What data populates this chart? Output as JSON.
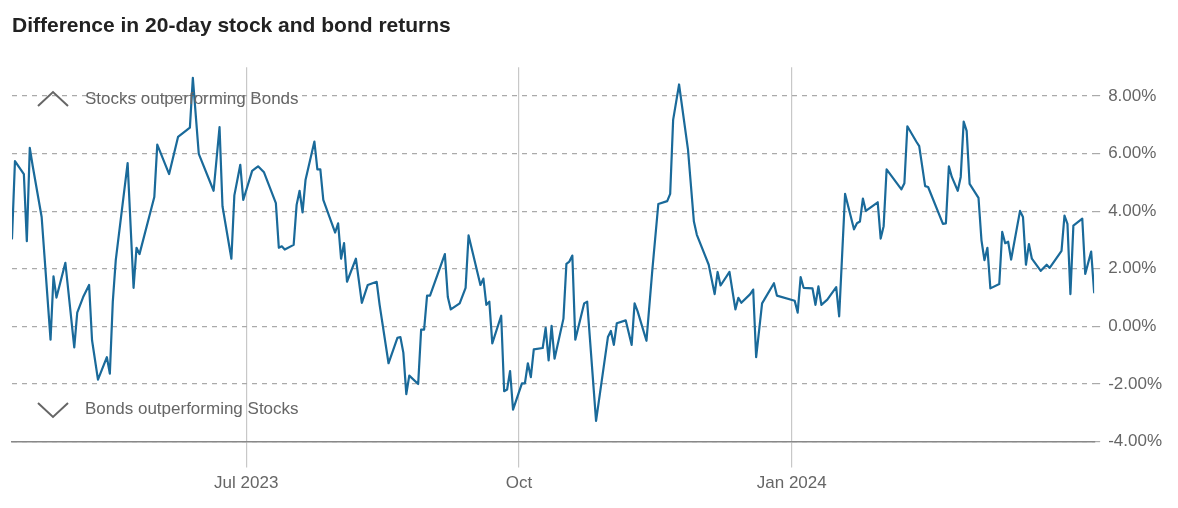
{
  "chart_data": {
    "type": "line",
    "title": "Difference in 20-day stock and bond returns",
    "annotations": [
      "Stocks outperforming Bonds",
      "Bonds outperforming Stocks"
    ],
    "x": [
      "2023-04-13",
      "2023-04-14",
      "2023-04-17",
      "2023-04-18",
      "2023-04-19",
      "2023-04-20",
      "2023-04-23",
      "2023-04-26",
      "2023-04-27",
      "2023-04-28",
      "2023-05-01",
      "2023-05-04",
      "2023-05-05",
      "2023-05-07",
      "2023-05-09",
      "2023-05-10",
      "2023-05-12",
      "2023-05-15",
      "2023-05-16",
      "2023-05-17",
      "2023-05-18",
      "2023-05-22",
      "2023-05-24",
      "2023-05-25",
      "2023-05-26",
      "2023-05-31",
      "2023-06-01",
      "2023-06-05",
      "2023-06-08",
      "2023-06-12",
      "2023-06-13",
      "2023-06-15",
      "2023-06-20",
      "2023-06-22",
      "2023-06-23",
      "2023-06-26",
      "2023-06-27",
      "2023-06-29",
      "2023-06-30",
      "2023-07-03",
      "2023-07-05",
      "2023-07-07",
      "2023-07-11",
      "2023-07-12",
      "2023-07-13",
      "2023-07-14",
      "2023-07-17",
      "2023-07-18",
      "2023-07-19",
      "2023-07-20",
      "2023-07-21",
      "2023-07-24",
      "2023-07-25",
      "2023-07-26",
      "2023-07-27",
      "2023-07-31",
      "2023-08-01",
      "2023-08-02",
      "2023-08-03",
      "2023-08-04",
      "2023-08-07",
      "2023-08-09",
      "2023-08-11",
      "2023-08-14",
      "2023-08-15",
      "2023-08-18",
      "2023-08-21",
      "2023-08-22",
      "2023-08-23",
      "2023-08-24",
      "2023-08-25",
      "2023-08-28",
      "2023-08-29",
      "2023-08-30",
      "2023-08-31",
      "2023-09-01",
      "2023-09-06",
      "2023-09-07",
      "2023-09-08",
      "2023-09-11",
      "2023-09-13",
      "2023-09-14",
      "2023-09-18",
      "2023-09-19",
      "2023-09-20",
      "2023-09-21",
      "2023-09-22",
      "2023-09-25",
      "2023-09-26",
      "2023-09-27",
      "2023-09-28",
      "2023-09-29",
      "2023-10-02",
      "2023-10-03",
      "2023-10-04",
      "2023-10-05",
      "2023-10-06",
      "2023-10-09",
      "2023-10-10",
      "2023-10-11",
      "2023-10-12",
      "2023-10-13",
      "2023-10-16",
      "2023-10-17",
      "2023-10-18",
      "2023-10-19",
      "2023-10-20",
      "2023-10-23",
      "2023-10-24",
      "2023-10-27",
      "2023-10-31",
      "2023-11-01",
      "2023-11-02",
      "2023-11-03",
      "2023-11-06",
      "2023-11-08",
      "2023-11-09",
      "2023-11-10",
      "2023-11-13",
      "2023-11-15",
      "2023-11-17",
      "2023-11-20",
      "2023-11-21",
      "2023-11-22",
      "2023-11-24",
      "2023-11-27",
      "2023-11-29",
      "2023-11-30",
      "2023-12-04",
      "2023-12-06",
      "2023-12-07",
      "2023-12-08",
      "2023-12-11",
      "2023-12-13",
      "2023-12-14",
      "2023-12-15",
      "2023-12-18",
      "2023-12-19",
      "2023-12-20",
      "2023-12-22",
      "2023-12-26",
      "2023-12-27",
      "2024-01-02",
      "2024-01-03",
      "2024-01-04",
      "2024-01-05",
      "2024-01-08",
      "2024-01-09",
      "2024-01-10",
      "2024-01-11",
      "2024-01-13",
      "2024-01-16",
      "2024-01-17",
      "2024-01-19",
      "2024-01-22",
      "2024-01-23",
      "2024-01-24",
      "2024-01-25",
      "2024-01-26",
      "2024-01-30",
      "2024-01-31",
      "2024-02-01",
      "2024-02-02",
      "2024-02-07",
      "2024-02-08",
      "2024-02-09",
      "2024-02-12",
      "2024-02-13",
      "2024-02-15",
      "2024-02-16",
      "2024-02-21",
      "2024-02-22",
      "2024-02-23",
      "2024-02-24",
      "2024-02-26",
      "2024-02-27",
      "2024-02-28",
      "2024-02-29",
      "2024-03-01",
      "2024-03-04",
      "2024-03-05",
      "2024-03-06",
      "2024-03-07",
      "2024-03-08",
      "2024-03-11",
      "2024-03-12",
      "2024-03-13",
      "2024-03-14",
      "2024-03-15",
      "2024-03-18",
      "2024-03-19",
      "2024-03-20",
      "2024-03-21",
      "2024-03-22",
      "2024-03-25",
      "2024-03-27",
      "2024-03-28",
      "2024-04-01",
      "2024-04-02",
      "2024-04-03",
      "2024-04-04",
      "2024-04-05",
      "2024-04-08",
      "2024-04-09",
      "2024-04-11",
      "2024-04-12"
    ],
    "series": [
      {
        "color": "#1a6a9a",
        "values": [
          3.05,
          5.74,
          5.29,
          2.96,
          6.2,
          5.56,
          3.8,
          -0.46,
          1.74,
          1.0,
          2.21,
          -0.73,
          0.48,
          1.02,
          1.44,
          -0.48,
          -1.85,
          -1.07,
          -1.64,
          0.86,
          2.3,
          5.67,
          1.34,
          2.73,
          2.51,
          4.49,
          6.31,
          5.29,
          6.58,
          6.9,
          8.63,
          5.99,
          4.71,
          6.92,
          4.17,
          2.35,
          4.55,
          5.61,
          4.39,
          5.4,
          5.56,
          5.35,
          4.28,
          2.73,
          2.78,
          2.67,
          2.83,
          4.22,
          4.71,
          3.96,
          5.08,
          6.42,
          5.45,
          5.45,
          4.39,
          3.26,
          3.58,
          2.35,
          2.89,
          1.55,
          2.35,
          0.82,
          1.44,
          1.55,
          0.75,
          -1.28,
          -0.4,
          -0.37,
          -0.91,
          -2.35,
          -1.71,
          -2.0,
          -0.11,
          -0.11,
          1.07,
          1.07,
          2.51,
          1.02,
          0.59,
          0.8,
          1.34,
          3.16,
          1.44,
          1.66,
          0.75,
          0.86,
          -0.59,
          0.37,
          -2.25,
          -2.19,
          -1.55,
          -2.89,
          -1.98,
          -1.98,
          -1.28,
          -1.76,
          -0.8,
          -0.75,
          -0.05,
          -1.18,
          0.02,
          -1.12,
          0.27,
          2.17,
          2.25,
          2.46,
          -0.46,
          0.8,
          0.86,
          -3.28,
          -0.37,
          -0.16,
          -0.64,
          0.11,
          0.21,
          -0.64,
          0.8,
          0.53,
          -0.5,
          1.98,
          4.25,
          4.35,
          4.6,
          7.17,
          8.4,
          6.15,
          3.64,
          3.18,
          2.14,
          1.12,
          1.89,
          1.42,
          1.89,
          0.59,
          0.99,
          0.82,
          1.12,
          1.28,
          -1.07,
          0.8,
          1.5,
          1.07,
          0.89,
          0.48,
          1.71,
          1.34,
          1.32,
          0.75,
          1.39,
          0.75,
          0.93,
          1.36,
          0.35,
          4.6,
          3.37,
          3.58,
          3.64,
          4.44,
          4.01,
          4.31,
          3.05,
          3.48,
          5.45,
          4.76,
          4.97,
          6.95,
          6.42,
          6.26,
          4.87,
          4.84,
          3.56,
          3.58,
          5.56,
          5.19,
          4.71,
          5.19,
          7.11,
          6.79,
          4.95,
          4.46,
          2.99,
          2.3,
          2.73,
          1.32,
          1.47,
          3.28,
          2.89,
          2.94,
          2.32,
          4.01,
          3.8,
          2.14,
          2.86,
          2.35,
          1.93,
          2.14,
          2.03,
          2.62,
          3.85,
          3.56,
          1.12,
          3.5,
          3.74,
          1.82,
          2.6,
          1.18
        ]
      }
    ],
    "xlim": [
      "2023-04-13",
      "2024-04-12"
    ],
    "xticks": [
      {
        "value": "2023-07-01",
        "label": "Jul 2023"
      },
      {
        "value": "2023-10-01",
        "label": "Oct"
      },
      {
        "value": "2024-01-01",
        "label": "Jan 2024"
      }
    ],
    "ylim": [
      -4,
      9
    ],
    "yticks": [
      {
        "value": -4,
        "label": "-4.00%"
      },
      {
        "value": -2,
        "label": "-2.00%"
      },
      {
        "value": 0,
        "label": "0.00%"
      },
      {
        "value": 2,
        "label": "2.00%"
      },
      {
        "value": 4,
        "label": "4.00%"
      },
      {
        "value": 6,
        "label": "6.00%"
      },
      {
        "value": 8,
        "label": "8.00%"
      }
    ],
    "grid": true,
    "marker": "none"
  }
}
